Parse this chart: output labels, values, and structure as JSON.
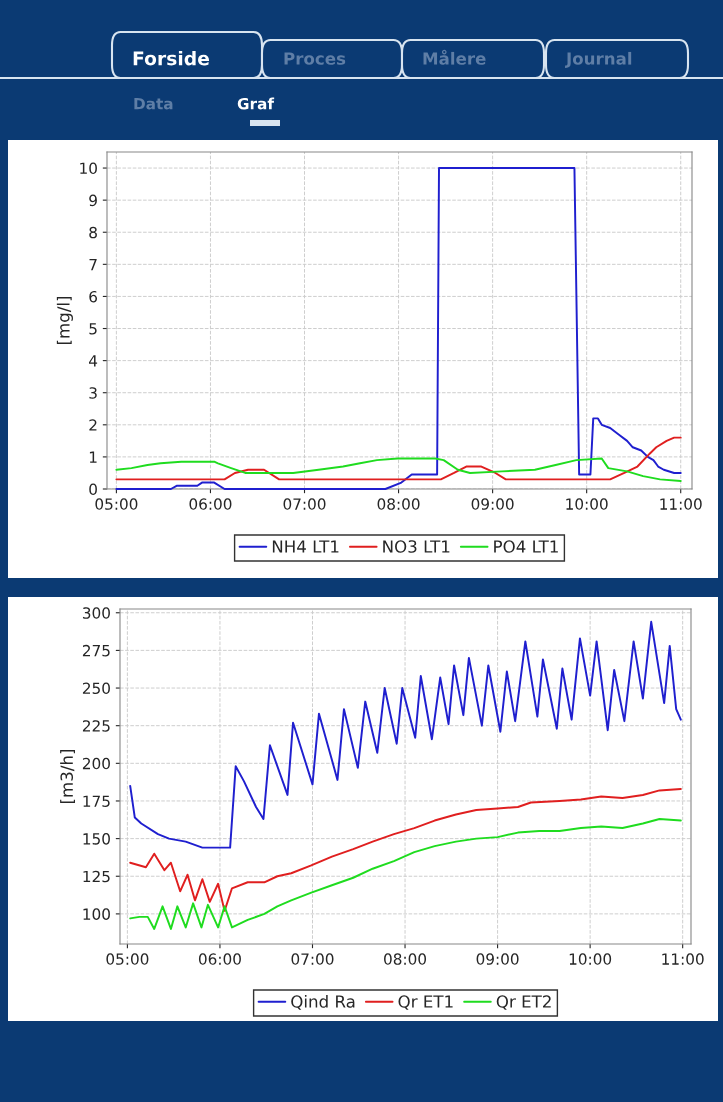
{
  "chart_data": [
    {
      "type": "line",
      "ylabel": "[mg/l]",
      "annotations": [
        "Forside",
        "Proces",
        "Målere",
        "Journal",
        "Data",
        "Graf"
      ],
      "xlim": [
        4.9,
        11.12
      ],
      "xticks": [
        {
          "value": 5,
          "label": "05:00"
        },
        {
          "value": 6,
          "label": "06:00"
        },
        {
          "value": 7,
          "label": "07:00"
        },
        {
          "value": 8,
          "label": "08:00"
        },
        {
          "value": 9,
          "label": "09:00"
        },
        {
          "value": 10,
          "label": "10:00"
        },
        {
          "value": 11,
          "label": "11:00"
        }
      ],
      "ylim": [
        0,
        10.5
      ],
      "yticks": [
        0,
        1,
        2,
        3,
        4,
        5,
        6,
        7,
        8,
        9,
        10
      ],
      "grid": true,
      "legend": "bottom",
      "marker": "none",
      "line_style": "solid",
      "series": [
        {
          "name": "NH4 LT1",
          "color": "#1f1fcf",
          "x": [
            5.0,
            5.58,
            5.64,
            5.86,
            5.91,
            6.04,
            6.15,
            7.86,
            8.03,
            8.14,
            8.41,
            8.43,
            9.87,
            9.92,
            10.04,
            10.07,
            10.12,
            10.16,
            10.25,
            10.34,
            10.43,
            10.49,
            10.58,
            10.65,
            10.71,
            10.76,
            10.82,
            10.93,
            11.0
          ],
          "values": [
            0,
            0,
            0.1,
            0.1,
            0.2,
            0.2,
            0,
            0,
            0.2,
            0.45,
            0.45,
            10,
            10,
            0.45,
            0.45,
            2.2,
            2.2,
            2.0,
            1.9,
            1.7,
            1.5,
            1.3,
            1.2,
            1.0,
            0.9,
            0.7,
            0.6,
            0.5,
            0.5
          ]
        },
        {
          "name": "NO3 LT1",
          "color": "#e01f1f",
          "x": [
            5.0,
            6.15,
            6.26,
            6.4,
            6.57,
            6.73,
            8.45,
            8.59,
            8.72,
            8.88,
            9.03,
            9.14,
            10.25,
            10.4,
            10.54,
            10.67,
            10.74,
            10.85,
            10.93,
            11.0
          ],
          "values": [
            0.3,
            0.3,
            0.5,
            0.6,
            0.6,
            0.3,
            0.3,
            0.5,
            0.7,
            0.7,
            0.5,
            0.3,
            0.3,
            0.5,
            0.7,
            1.1,
            1.3,
            1.5,
            1.6,
            1.6
          ]
        },
        {
          "name": "PO4 LT1",
          "color": "#1fdc1f",
          "x": [
            5.0,
            5.16,
            5.33,
            5.47,
            5.69,
            6.04,
            6.08,
            6.22,
            6.37,
            6.62,
            6.88,
            7.15,
            7.41,
            7.59,
            7.77,
            7.99,
            8.39,
            8.48,
            8.63,
            8.76,
            9.1,
            9.45,
            9.67,
            9.89,
            10.16,
            10.23,
            10.43,
            10.6,
            10.78,
            11.0
          ],
          "values": [
            0.6,
            0.65,
            0.75,
            0.8,
            0.85,
            0.85,
            0.8,
            0.65,
            0.5,
            0.5,
            0.5,
            0.6,
            0.7,
            0.8,
            0.9,
            0.95,
            0.95,
            0.9,
            0.6,
            0.5,
            0.55,
            0.6,
            0.75,
            0.9,
            0.95,
            0.65,
            0.55,
            0.4,
            0.3,
            0.25
          ]
        }
      ]
    },
    {
      "type": "line",
      "ylabel": "[m3/h]",
      "xlim": [
        4.92,
        11.09
      ],
      "xticks": [
        {
          "value": 5,
          "label": "05:00"
        },
        {
          "value": 6,
          "label": "06:00"
        },
        {
          "value": 7,
          "label": "07:00"
        },
        {
          "value": 8,
          "label": "08:00"
        },
        {
          "value": 9,
          "label": "09:00"
        },
        {
          "value": 10,
          "label": "10:00"
        },
        {
          "value": 11,
          "label": "11:00"
        }
      ],
      "ylim": [
        80,
        302.5
      ],
      "yticks": [
        100,
        125,
        150,
        175,
        200,
        225,
        250,
        275,
        300
      ],
      "grid": true,
      "legend": "bottom",
      "marker": "none",
      "line_style": "solid",
      "series": [
        {
          "name": "Qind Ra",
          "color": "#1f1fcf",
          "x": [
            5.03,
            5.08,
            5.15,
            5.33,
            5.45,
            5.63,
            5.81,
            5.99,
            6.11,
            6.17,
            6.26,
            6.39,
            6.47,
            6.54,
            6.73,
            6.79,
            7.0,
            7.07,
            7.27,
            7.34,
            7.49,
            7.57,
            7.7,
            7.78,
            7.91,
            7.97,
            8.11,
            8.17,
            8.29,
            8.38,
            8.47,
            8.53,
            8.63,
            8.69,
            8.83,
            8.9,
            9.03,
            9.1,
            9.19,
            9.3,
            9.43,
            9.49,
            9.64,
            9.7,
            9.8,
            9.89,
            10.0,
            10.07,
            10.19,
            10.26,
            10.37,
            10.47,
            10.57,
            10.66,
            10.8,
            10.86,
            10.93,
            10.98
          ],
          "values": [
            185,
            164,
            160,
            153,
            150,
            148,
            144,
            144,
            144,
            198,
            188,
            171,
            163,
            212,
            179,
            227,
            186,
            233,
            189,
            236,
            197,
            241,
            207,
            250,
            213,
            250,
            217,
            258,
            216,
            257,
            226,
            265,
            232,
            270,
            225,
            265,
            221,
            261,
            228,
            281,
            231,
            269,
            223,
            263,
            229,
            283,
            245,
            281,
            222,
            262,
            228,
            281,
            243,
            294,
            240,
            278,
            236,
            229
          ]
        },
        {
          "name": "Qr ET1",
          "color": "#e01f1f",
          "x": [
            5.03,
            5.2,
            5.29,
            5.4,
            5.47,
            5.57,
            5.65,
            5.73,
            5.81,
            5.89,
            5.98,
            6.05,
            6.13,
            6.3,
            6.48,
            6.62,
            6.77,
            6.98,
            7.21,
            7.44,
            7.65,
            7.88,
            8.1,
            8.32,
            8.55,
            8.77,
            9.0,
            9.22,
            9.36,
            9.67,
            9.9,
            10.12,
            10.35,
            10.57,
            10.75,
            10.98
          ],
          "values": [
            134,
            131,
            140,
            129,
            134,
            115,
            126,
            109,
            123,
            108,
            120,
            102,
            117,
            121,
            121,
            125,
            127,
            132,
            138,
            143,
            148,
            153,
            157,
            162,
            166,
            169,
            170,
            171,
            174,
            175,
            176,
            178,
            177,
            179,
            182,
            183
          ]
        },
        {
          "name": "Qr ET2",
          "color": "#1fdc1f",
          "x": [
            5.03,
            5.13,
            5.22,
            5.29,
            5.38,
            5.47,
            5.54,
            5.63,
            5.71,
            5.8,
            5.87,
            5.98,
            6.05,
            6.13,
            6.3,
            6.48,
            6.62,
            6.77,
            6.98,
            7.21,
            7.44,
            7.65,
            7.88,
            8.1,
            8.32,
            8.55,
            8.77,
            9.0,
            9.22,
            9.45,
            9.67,
            9.9,
            10.12,
            10.35,
            10.57,
            10.75,
            10.98
          ],
          "values": [
            97,
            98,
            98,
            90,
            105,
            90,
            105,
            91,
            107,
            91,
            106,
            91,
            105,
            91,
            96,
            100,
            105,
            109,
            114,
            119,
            124,
            130,
            135,
            141,
            145,
            148,
            150,
            151,
            154,
            155,
            155,
            157,
            158,
            157,
            160,
            163,
            162
          ]
        }
      ]
    }
  ]
}
